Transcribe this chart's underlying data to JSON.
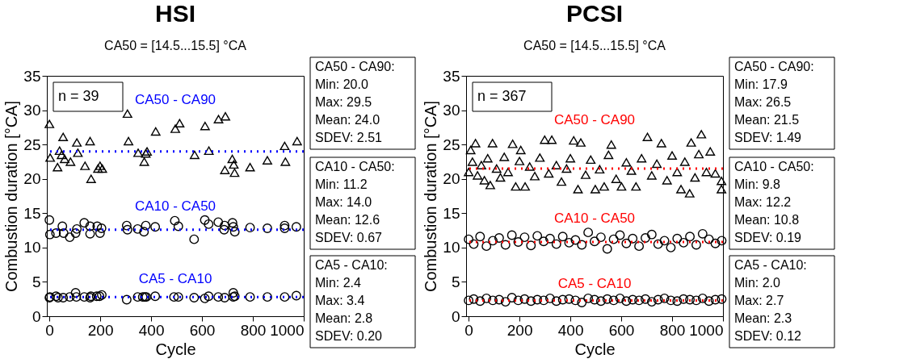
{
  "chart_data": [
    {
      "type": "scatter",
      "title": "HSI",
      "subtitle": "CA50 = [14.5...15.5] °CA",
      "xlabel": "Cycle",
      "ylabel": "Combustion duration [°CA]",
      "xlim": [
        -10,
        1000
      ],
      "xticks": [
        0,
        200,
        400,
        600,
        800,
        1000
      ],
      "ylim": [
        0,
        35
      ],
      "yticks": [
        0,
        5,
        10,
        15,
        20,
        25,
        30,
        35
      ],
      "series": [
        {
          "name": "CA50 - CA90",
          "color": "#000000",
          "marker": "triangle",
          "x": [
            0,
            3,
            32,
            40,
            48,
            54,
            60,
            83,
            108,
            112,
            140,
            160,
            164,
            191,
            199,
            208,
            307,
            311,
            349,
            373,
            379,
            384,
            418,
            495,
            512,
            571,
            612,
            627,
            665,
            692,
            690,
            719,
            725,
            728,
            789,
            857,
            925,
            928,
            974
          ],
          "values": [
            28.0,
            23.1,
            21.7,
            24.1,
            23.5,
            26.1,
            22.9,
            22.5,
            25.3,
            23.8,
            21.9,
            25.5,
            20.0,
            21.5,
            21.9,
            21.5,
            29.5,
            25.5,
            23.8,
            22.5,
            23.7,
            24.0,
            26.9,
            27.3,
            28.1,
            23.5,
            27.7,
            24.1,
            28.7,
            29.1,
            21.3,
            22.9,
            22.1,
            20.9,
            21.7,
            22.7,
            24.8,
            22.5,
            25.5
          ]
        },
        {
          "name": "CA10 - CA50",
          "color": "#000000",
          "marker": "circle",
          "x": [
            0,
            2,
            26,
            51,
            56,
            80,
            103,
            108,
            137,
            160,
            160,
            188,
            199,
            205,
            304,
            307,
            347,
            372,
            379,
            416,
            493,
            507,
            569,
            611,
            626,
            664,
            687,
            689,
            720,
            723,
            729,
            789,
            857,
            925,
            925,
            971
          ],
          "values": [
            14.0,
            11.9,
            12.1,
            13.1,
            12.1,
            11.5,
            12.1,
            12.7,
            13.6,
            13.1,
            12.0,
            13.1,
            12.1,
            12.8,
            13.2,
            12.6,
            12.7,
            12.3,
            13.2,
            13.0,
            13.9,
            13.1,
            11.2,
            14.0,
            13.4,
            13.7,
            12.6,
            13.2,
            13.6,
            13.0,
            12.3,
            12.9,
            12.8,
            13.2,
            12.8,
            13.0
          ]
        },
        {
          "name": "CA5 - CA10",
          "color": "#000000",
          "marker": "circle",
          "x": [
            0,
            2,
            26,
            34,
            54,
            80,
            103,
            106,
            137,
            160,
            163,
            186,
            197,
            206,
            304,
            347,
            367,
            375,
            381,
            416,
            490,
            507,
            569,
            611,
            626,
            664,
            689,
            723,
            729,
            723,
            789,
            857,
            925,
            971
          ],
          "values": [
            2.7,
            2.8,
            2.9,
            2.7,
            2.7,
            2.8,
            3.4,
            2.8,
            2.8,
            2.7,
            2.9,
            2.9,
            2.9,
            3.1,
            2.4,
            2.8,
            2.8,
            2.8,
            2.8,
            2.9,
            2.8,
            2.8,
            2.7,
            2.6,
            2.9,
            2.8,
            2.7,
            3.4,
            2.9,
            2.8,
            2.8,
            2.8,
            2.8,
            3.0
          ]
        }
      ],
      "ref_lines": [
        {
          "axis": "y",
          "value": 24.0,
          "color": "#0000ff",
          "line_style": "dotted"
        },
        {
          "axis": "y",
          "value": 12.6,
          "color": "#0000ff",
          "line_style": "dotted"
        },
        {
          "axis": "y",
          "value": 2.8,
          "color": "#0000ff",
          "line_style": "dotted"
        }
      ],
      "annotations": [
        "n = 39",
        "CA50 - CA90:\nMin: 20.0\nMax: 29.5\nMean: 24.0\nSDEV: 2.51",
        "CA10 - CA50:\nMin: 11.2\nMax: 14.0\nMean: 12.6\nSDEV: 0.67",
        "CA5 - CA10:\nMin: 2.4\nMax: 3.4\nMean: 2.8\nSDEV: 0.20"
      ]
    },
    {
      "type": "scatter",
      "title": "PCSI",
      "subtitle": "CA50 = [14.5...15.5] °CA",
      "xlabel": "Cycle",
      "ylabel": "Combustion duration [°CA]",
      "xlim": [
        -10,
        1000
      ],
      "xticks": [
        0,
        200,
        400,
        600,
        800,
        1000
      ],
      "ylim": [
        0,
        35
      ],
      "yticks": [
        0,
        5,
        10,
        15,
        20,
        25,
        30,
        35
      ],
      "series": [
        {
          "name": "CA50 - CA90",
          "color": "#000000",
          "marker": "triangle",
          "x": [
            0,
            8,
            15,
            27,
            35,
            50,
            62,
            75,
            85,
            94,
            110,
            125,
            140,
            155,
            173,
            185,
            200,
            205,
            222,
            240,
            260,
            280,
            299,
            315,
            327,
            345,
            365,
            385,
            400,
            413,
            430,
            441,
            460,
            480,
            498,
            515,
            533,
            550,
            561,
            580,
            601,
            620,
            640,
            658,
            680,
            703,
            720,
            740,
            758,
            780,
            800,
            820,
            835,
            850,
            869,
            875,
            890,
            905,
            915,
            935,
            950,
            970,
            994,
            994
          ],
          "values": [
            21.0,
            24.2,
            22.5,
            25.2,
            20.5,
            22.0,
            19.8,
            23.0,
            19.1,
            25.2,
            21.5,
            20.2,
            23.2,
            21.0,
            25.1,
            18.9,
            22.6,
            24.2,
            18.9,
            21.8,
            20.4,
            23.1,
            25.7,
            20.8,
            25.7,
            22.0,
            19.6,
            21.5,
            23.0,
            25.6,
            18.5,
            25.3,
            20.6,
            22.8,
            18.5,
            21.4,
            18.9,
            23.5,
            25.0,
            20.0,
            18.9,
            22.4,
            21.2,
            18.9,
            23.0,
            26.1,
            20.5,
            22.2,
            25.2,
            19.8,
            23.4,
            21.0,
            18.5,
            22.5,
            17.9,
            25.3,
            20.2,
            23.6,
            26.5,
            21.0,
            24.0,
            20.8,
            18.5,
            19.7
          ]
        },
        {
          "name": "CA10 - CA50",
          "color": "#000000",
          "marker": "circle",
          "x": [
            0,
            20,
            45,
            70,
            95,
            120,
            145,
            170,
            195,
            220,
            245,
            270,
            295,
            320,
            345,
            370,
            395,
            420,
            445,
            470,
            495,
            520,
            545,
            570,
            595,
            620,
            645,
            670,
            695,
            720,
            745,
            770,
            795,
            820,
            845,
            870,
            895,
            920,
            945,
            970,
            995
          ],
          "values": [
            11.2,
            10.5,
            11.6,
            10.2,
            11.0,
            11.4,
            10.4,
            11.8,
            10.8,
            11.5,
            10.3,
            11.7,
            10.9,
            11.3,
            10.5,
            11.6,
            10.7,
            11.1,
            10.4,
            12.2,
            10.9,
            11.5,
            9.8,
            11.2,
            11.8,
            10.6,
            11.3,
            10.2,
            11.4,
            11.9,
            10.5,
            11.0,
            10.0,
            11.3,
            10.7,
            11.6,
            10.4,
            12.0,
            11.2,
            10.6,
            11.0
          ]
        },
        {
          "name": "CA5 - CA10",
          "color": "#000000",
          "marker": "circle",
          "x": [
            0,
            20,
            45,
            70,
            95,
            120,
            145,
            170,
            195,
            220,
            245,
            270,
            295,
            320,
            345,
            370,
            395,
            420,
            445,
            470,
            495,
            520,
            545,
            570,
            595,
            620,
            645,
            670,
            695,
            720,
            745,
            770,
            795,
            820,
            845,
            870,
            895,
            920,
            945,
            970,
            995
          ],
          "values": [
            2.3,
            2.5,
            2.2,
            2.6,
            2.3,
            2.4,
            2.1,
            2.7,
            2.3,
            2.5,
            2.2,
            2.4,
            2.3,
            2.6,
            2.2,
            2.4,
            2.5,
            2.3,
            2.0,
            2.6,
            2.4,
            2.2,
            2.5,
            2.3,
            2.6,
            2.2,
            2.4,
            2.3,
            2.5,
            2.1,
            2.4,
            2.6,
            2.3,
            2.2,
            2.5,
            2.4,
            2.3,
            2.6,
            2.2,
            2.4,
            2.5
          ]
        }
      ],
      "ref_lines": [
        {
          "axis": "y",
          "value": 21.5,
          "color": "#ff0000",
          "line_style": "dotted"
        },
        {
          "axis": "y",
          "value": 10.8,
          "color": "#ff0000",
          "line_style": "dotted"
        },
        {
          "axis": "y",
          "value": 2.3,
          "color": "#ff0000",
          "line_style": "dotted"
        }
      ],
      "annotations": [
        "n = 367",
        "CA50 - CA90:\nMin: 17.9\nMax: 26.5\nMean: 21.5\nSDEV: 1.49",
        "CA10 - CA50:\nMin: 9.8\nMax: 12.2\nMean: 10.8\nSDEV: 0.19",
        "CA5 - CA10:\nMin:  2.0\nMax: 2.7\nMean: 2.3\nSDEV: 0.12"
      ]
    }
  ]
}
